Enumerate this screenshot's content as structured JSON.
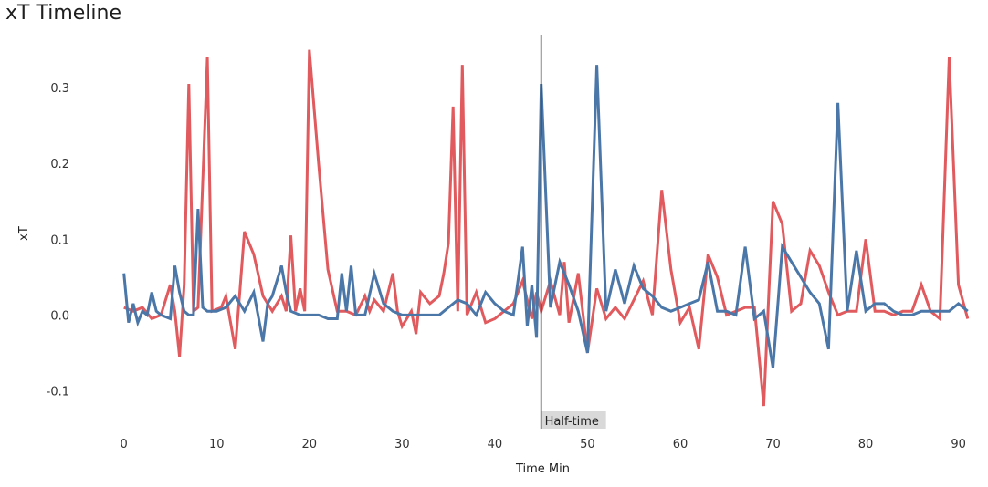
{
  "chart_data": {
    "type": "line",
    "title": "xT Timeline",
    "xlabel": "Time Min",
    "ylabel": "xT",
    "xlim": [
      -4.5,
      92.5
    ],
    "ylim": [
      -0.15,
      0.37
    ],
    "xticks": [
      0,
      10,
      20,
      30,
      40,
      50,
      60,
      70,
      80,
      90
    ],
    "yticks": [
      {
        "value": 0.3,
        "label": "0.3"
      },
      {
        "value": 0.2,
        "label": "0.2"
      },
      {
        "value": 0.1,
        "label": "0.1"
      },
      {
        "value": 0.0,
        "label": "0.0"
      },
      {
        "value": -0.1,
        "label": "-0.1"
      }
    ],
    "grid": false,
    "annotation": {
      "x": 45,
      "label": "Half-time"
    },
    "series": [
      {
        "color": "#e05a5e",
        "x": [
          0,
          1,
          2,
          3,
          4,
          5,
          5.5,
          6,
          6.5,
          7,
          7.5,
          8,
          9,
          9.5,
          10.5,
          11,
          12,
          12.5,
          13,
          14,
          15,
          16,
          17,
          17.5,
          18,
          18.5,
          19,
          19.5,
          20,
          21,
          22,
          23,
          24,
          25,
          26,
          26.5,
          27,
          28,
          29,
          29.5,
          30,
          31,
          31.5,
          32,
          33,
          34,
          34.5,
          35,
          35.5,
          36,
          36.5,
          37,
          38,
          39,
          40,
          41,
          42,
          43,
          43.5,
          44,
          44.5,
          45,
          46,
          47,
          47.5,
          48,
          49,
          50,
          51,
          52,
          53,
          54,
          55,
          56,
          57,
          58,
          59,
          60,
          61,
          62,
          63,
          64,
          65,
          66,
          67,
          68,
          69,
          70,
          71,
          72,
          73,
          74,
          75,
          76,
          77,
          78,
          79,
          80,
          81,
          82,
          83,
          84,
          85,
          86,
          87,
          88,
          89,
          90,
          91
        ],
        "y": [
          0.01,
          0.005,
          0.01,
          -0.005,
          0.0,
          0.04,
          0.005,
          -0.055,
          0.04,
          0.305,
          0.005,
          0.01,
          0.34,
          0.005,
          0.01,
          0.025,
          -0.045,
          0.03,
          0.11,
          0.08,
          0.025,
          0.005,
          0.025,
          0.005,
          0.105,
          0.005,
          0.035,
          0.005,
          0.35,
          0.2,
          0.06,
          0.005,
          0.005,
          0.0,
          0.025,
          0.005,
          0.02,
          0.005,
          0.055,
          0.005,
          -0.015,
          0.005,
          -0.025,
          0.03,
          0.015,
          0.025,
          0.055,
          0.095,
          0.275,
          0.005,
          0.33,
          0.0,
          0.03,
          -0.01,
          -0.005,
          0.005,
          0.015,
          0.045,
          0.02,
          -0.005,
          0.03,
          0.005,
          0.045,
          0.0,
          0.07,
          -0.01,
          0.055,
          -0.05,
          0.035,
          -0.005,
          0.01,
          -0.005,
          0.02,
          0.045,
          0.0,
          0.165,
          0.06,
          -0.01,
          0.01,
          -0.045,
          0.08,
          0.05,
          0.0,
          0.005,
          0.01,
          0.01,
          -0.12,
          0.15,
          0.12,
          0.005,
          0.015,
          0.085,
          0.065,
          0.03,
          0.0,
          0.005,
          0.005,
          0.1,
          0.005,
          0.005,
          0.0,
          0.005,
          0.005,
          0.04,
          0.005,
          -0.005,
          0.34,
          0.04,
          -0.005
        ]
      },
      {
        "color": "#4a77a8",
        "x": [
          0,
          0.5,
          1,
          1.5,
          2,
          2.5,
          3,
          3.5,
          4,
          5,
          5.5,
          6,
          6.5,
          7,
          7.5,
          8,
          8.5,
          9,
          10,
          11,
          12,
          12.5,
          13,
          14,
          15,
          15.5,
          16,
          17,
          17.5,
          18,
          19,
          20,
          21,
          22,
          23,
          23.5,
          24,
          24.5,
          25,
          26,
          27,
          28,
          29,
          30,
          31,
          33,
          34,
          36,
          37,
          38,
          39,
          40,
          41,
          42,
          43,
          43.5,
          44,
          44.5,
          45,
          46,
          47,
          48,
          49,
          50,
          51,
          52,
          53,
          54,
          55,
          56,
          57,
          58,
          59,
          60,
          61,
          62,
          63,
          64,
          65,
          66,
          67,
          68,
          69,
          70,
          71,
          72,
          73,
          74,
          75,
          76,
          77,
          78,
          79,
          80,
          81,
          82,
          83,
          84,
          85,
          86,
          87,
          88,
          89,
          90,
          91
        ],
        "y": [
          0.055,
          -0.01,
          0.015,
          -0.01,
          0.005,
          0.0,
          0.03,
          0.005,
          0.0,
          -0.005,
          0.065,
          0.03,
          0.005,
          0.0,
          0.0,
          0.14,
          0.01,
          0.005,
          0.005,
          0.01,
          0.025,
          0.015,
          0.005,
          0.03,
          -0.035,
          0.015,
          0.025,
          0.065,
          0.03,
          0.005,
          0.0,
          0.0,
          0.0,
          -0.005,
          -0.005,
          0.055,
          0.005,
          0.065,
          0.0,
          0.0,
          0.055,
          0.015,
          0.005,
          0.0,
          0.0,
          0.0,
          0.0,
          0.02,
          0.015,
          0.0,
          0.03,
          0.015,
          0.005,
          0.0,
          0.09,
          -0.015,
          0.04,
          -0.03,
          0.305,
          0.01,
          0.07,
          0.04,
          0.005,
          -0.05,
          0.33,
          0.005,
          0.06,
          0.015,
          0.065,
          0.035,
          0.025,
          0.01,
          0.005,
          0.01,
          0.015,
          0.02,
          0.07,
          0.005,
          0.005,
          0.0,
          0.09,
          -0.005,
          0.005,
          -0.07,
          0.09,
          0.07,
          0.05,
          0.03,
          0.015,
          -0.045,
          0.28,
          0.005,
          0.085,
          0.005,
          0.015,
          0.015,
          0.005,
          0.0,
          0.0,
          0.005,
          0.005,
          0.005,
          0.005,
          0.015,
          0.005
        ]
      }
    ]
  }
}
